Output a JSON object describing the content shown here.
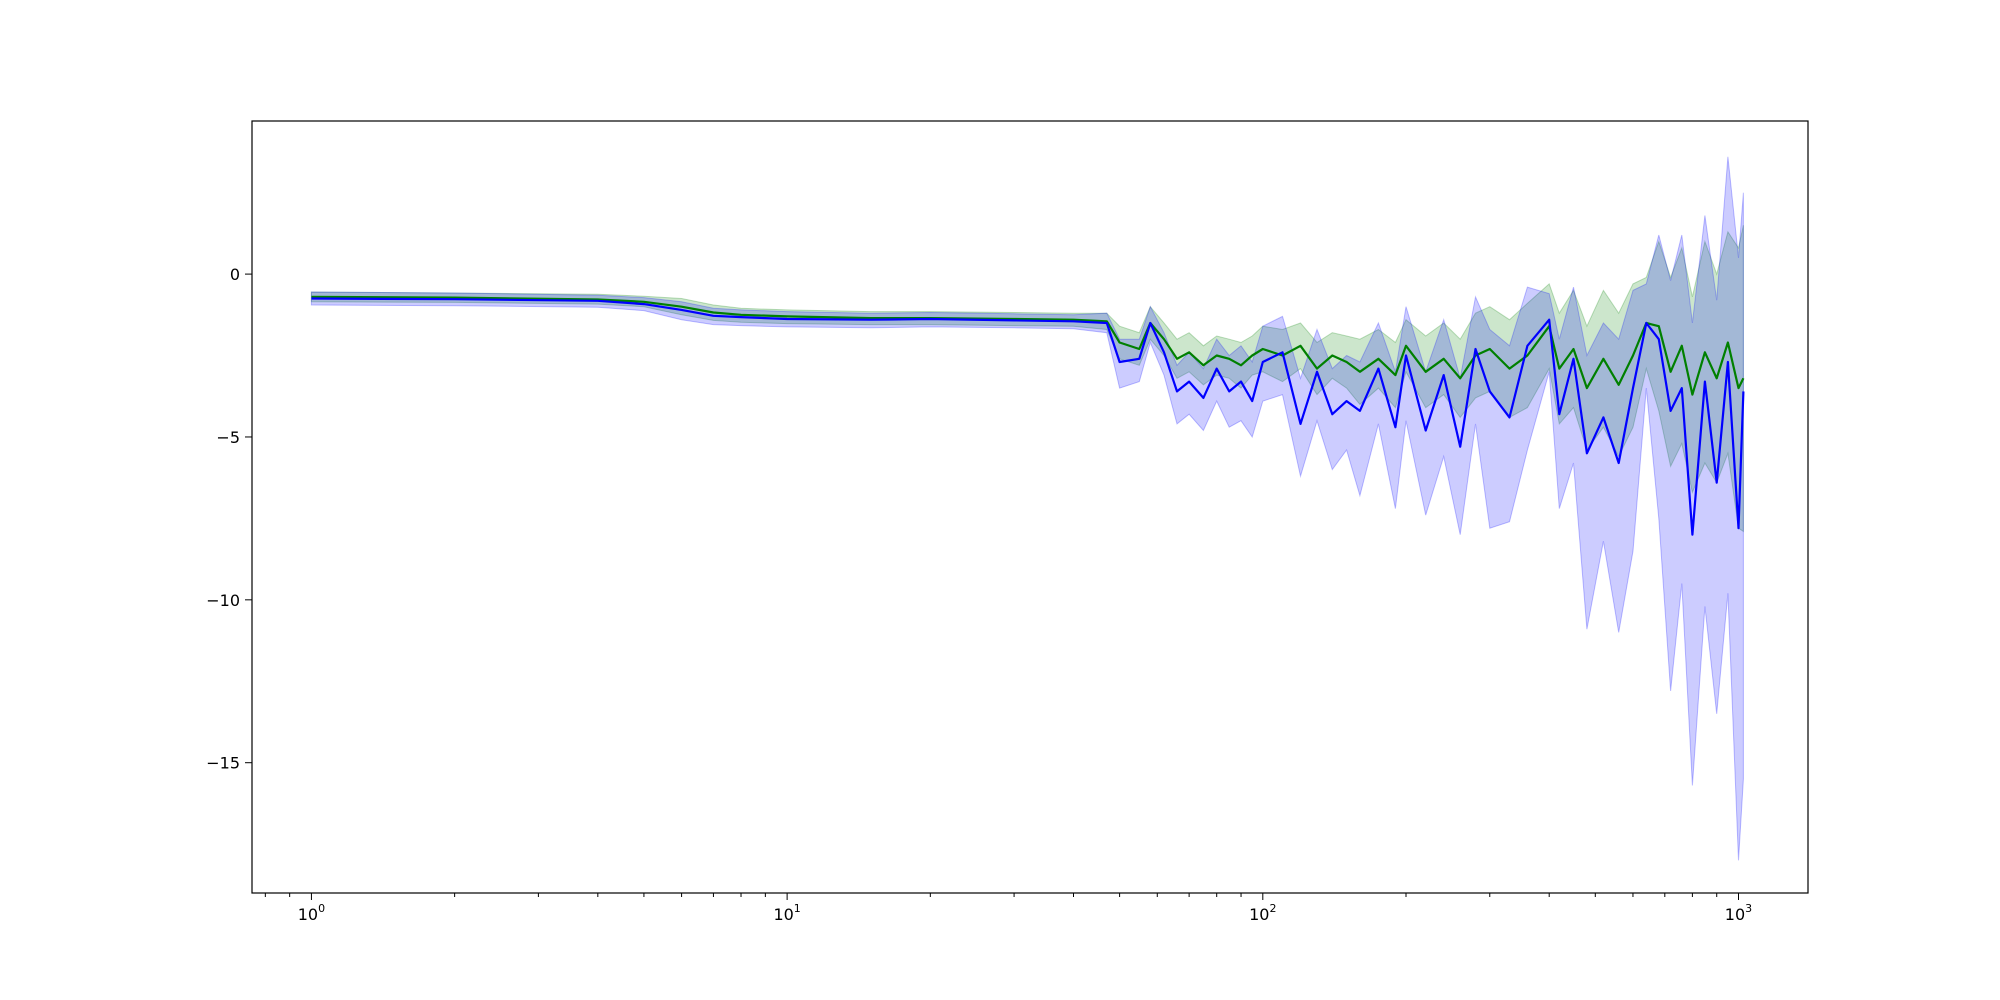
{
  "chart_data": {
    "type": "line",
    "title": "",
    "xlabel": "",
    "ylabel": "",
    "x_scale": "log",
    "xlim": [
      0.75,
      1400
    ],
    "ylim": [
      -19,
      4.7
    ],
    "grid": false,
    "x_ticks": [
      {
        "value": 1,
        "base": "10",
        "exp": "0"
      },
      {
        "value": 10,
        "base": "10",
        "exp": "1"
      },
      {
        "value": 100,
        "base": "10",
        "exp": "2"
      },
      {
        "value": 1000,
        "base": "10",
        "exp": "3"
      }
    ],
    "y_ticks": [
      {
        "value": 0,
        "label": "0"
      },
      {
        "value": -5,
        "label": "−5"
      },
      {
        "value": -10,
        "label": "−10"
      },
      {
        "value": -15,
        "label": "−15"
      }
    ],
    "series": [
      {
        "color": "#008000",
        "band_color": "#008000",
        "x": [
          1,
          2,
          4,
          5,
          6,
          7,
          8,
          10,
          15,
          20,
          30,
          40,
          47,
          50,
          55,
          58,
          62,
          66,
          70,
          75,
          80,
          85,
          90,
          95,
          100,
          110,
          120,
          130,
          140,
          150,
          160,
          175,
          190,
          200,
          220,
          240,
          260,
          280,
          300,
          330,
          360,
          400,
          420,
          450,
          480,
          520,
          560,
          600,
          640,
          680,
          720,
          760,
          800,
          850,
          900,
          950,
          1000,
          1024
        ],
        "y": [
          -0.7,
          -0.72,
          -0.78,
          -0.85,
          -1.0,
          -1.18,
          -1.25,
          -1.3,
          -1.35,
          -1.35,
          -1.38,
          -1.4,
          -1.45,
          -2.1,
          -2.3,
          -1.5,
          -2.0,
          -2.6,
          -2.4,
          -2.8,
          -2.5,
          -2.6,
          -2.8,
          -2.5,
          -2.3,
          -2.5,
          -2.2,
          -2.9,
          -2.5,
          -2.7,
          -3.0,
          -2.6,
          -3.1,
          -2.2,
          -3.0,
          -2.6,
          -3.2,
          -2.5,
          -2.3,
          -2.9,
          -2.5,
          -1.6,
          -2.9,
          -2.3,
          -3.5,
          -2.6,
          -3.4,
          -2.5,
          -1.5,
          -1.6,
          -3.0,
          -2.2,
          -3.7,
          -2.4,
          -3.2,
          -2.1,
          -3.5,
          -3.2
        ],
        "upper": [
          -0.55,
          -0.58,
          -0.62,
          -0.68,
          -0.75,
          -0.95,
          -1.05,
          -1.1,
          -1.15,
          -1.15,
          -1.18,
          -1.2,
          -1.2,
          -1.6,
          -1.8,
          -1.0,
          -1.5,
          -2.0,
          -1.8,
          -2.2,
          -1.9,
          -2.0,
          -2.1,
          -1.9,
          -1.6,
          -1.7,
          -1.5,
          -2.1,
          -1.8,
          -1.9,
          -2.0,
          -1.7,
          -2.1,
          -1.4,
          -1.9,
          -1.5,
          -2.0,
          -1.2,
          -1.0,
          -1.4,
          -0.9,
          -0.3,
          -1.2,
          -0.5,
          -1.6,
          -0.5,
          -1.2,
          -0.3,
          -0.1,
          1.0,
          -0.1,
          0.8,
          -0.7,
          1.0,
          0.0,
          1.3,
          0.8,
          1.5
        ],
        "lower": [
          -0.85,
          -0.87,
          -0.92,
          -1.0,
          -1.25,
          -1.42,
          -1.48,
          -1.52,
          -1.55,
          -1.55,
          -1.58,
          -1.6,
          -1.7,
          -2.6,
          -2.8,
          -2.0,
          -2.5,
          -3.2,
          -3.0,
          -3.4,
          -3.1,
          -3.2,
          -3.5,
          -3.1,
          -3.0,
          -3.3,
          -2.9,
          -3.7,
          -3.2,
          -3.5,
          -4.0,
          -3.5,
          -4.1,
          -3.0,
          -4.1,
          -3.7,
          -4.4,
          -3.8,
          -3.6,
          -4.4,
          -4.1,
          -2.9,
          -4.6,
          -4.1,
          -5.4,
          -4.7,
          -5.6,
          -4.7,
          -2.9,
          -4.2,
          -5.9,
          -5.2,
          -6.7,
          -5.8,
          -6.4,
          -5.5,
          -7.8,
          -7.9
        ]
      },
      {
        "color": "#0000ff",
        "band_color": "#0000ff",
        "x": [
          1,
          2,
          4,
          5,
          6,
          7,
          8,
          10,
          15,
          20,
          30,
          40,
          47,
          50,
          55,
          58,
          62,
          66,
          70,
          75,
          80,
          85,
          90,
          95,
          100,
          110,
          120,
          130,
          140,
          150,
          160,
          175,
          190,
          200,
          220,
          240,
          260,
          280,
          300,
          330,
          360,
          400,
          420,
          450,
          480,
          520,
          560,
          600,
          640,
          680,
          720,
          760,
          800,
          850,
          900,
          950,
          1000,
          1024
        ],
        "y": [
          -0.75,
          -0.77,
          -0.82,
          -0.92,
          -1.1,
          -1.28,
          -1.32,
          -1.38,
          -1.4,
          -1.38,
          -1.42,
          -1.45,
          -1.5,
          -2.7,
          -2.6,
          -1.5,
          -2.4,
          -3.6,
          -3.3,
          -3.8,
          -2.9,
          -3.6,
          -3.3,
          -3.9,
          -2.7,
          -2.4,
          -4.6,
          -3.0,
          -4.3,
          -3.9,
          -4.2,
          -2.9,
          -4.7,
          -2.5,
          -4.8,
          -3.1,
          -5.3,
          -2.3,
          -3.6,
          -4.4,
          -2.2,
          -1.4,
          -4.3,
          -2.6,
          -5.5,
          -4.4,
          -5.8,
          -3.5,
          -1.5,
          -2.0,
          -4.2,
          -3.5,
          -8.0,
          -3.3,
          -6.4,
          -2.7,
          -7.8,
          -3.6
        ],
        "upper": [
          -0.55,
          -0.58,
          -0.65,
          -0.72,
          -0.85,
          -1.05,
          -1.1,
          -1.15,
          -1.2,
          -1.18,
          -1.22,
          -1.25,
          -1.2,
          -2.0,
          -2.0,
          -1.0,
          -1.8,
          -2.8,
          -2.4,
          -2.9,
          -2.0,
          -2.5,
          -2.2,
          -2.7,
          -1.6,
          -1.3,
          -3.2,
          -1.7,
          -2.9,
          -2.5,
          -2.7,
          -1.5,
          -3.0,
          -1.0,
          -3.0,
          -1.4,
          -3.2,
          -0.7,
          -1.7,
          -2.2,
          -0.4,
          -0.6,
          -2.0,
          -0.4,
          -2.5,
          -1.5,
          -2.0,
          -0.5,
          -0.3,
          1.2,
          -0.2,
          1.2,
          -1.5,
          1.8,
          -0.8,
          3.6,
          0.5,
          2.5
        ],
        "lower": [
          -0.95,
          -0.97,
          -1.02,
          -1.12,
          -1.4,
          -1.55,
          -1.58,
          -1.62,
          -1.65,
          -1.62,
          -1.65,
          -1.68,
          -1.8,
          -3.5,
          -3.3,
          -2.1,
          -3.1,
          -4.6,
          -4.3,
          -4.8,
          -3.9,
          -4.7,
          -4.5,
          -5.0,
          -3.9,
          -3.7,
          -6.2,
          -4.5,
          -6.0,
          -5.4,
          -6.8,
          -4.6,
          -7.2,
          -4.5,
          -7.4,
          -5.6,
          -8.0,
          -4.6,
          -7.8,
          -7.6,
          -5.4,
          -3.0,
          -7.2,
          -5.8,
          -10.9,
          -8.2,
          -11.0,
          -8.5,
          -3.5,
          -7.5,
          -12.8,
          -9.5,
          -15.7,
          -10.2,
          -13.5,
          -9.8,
          -18.0,
          -15.5
        ]
      }
    ]
  }
}
